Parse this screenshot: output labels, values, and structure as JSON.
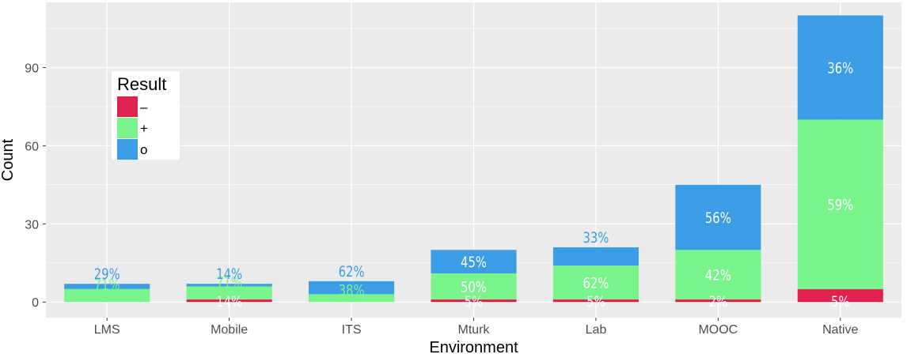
{
  "chart_data": {
    "type": "bar",
    "stacked": true,
    "xlabel": "Environment",
    "ylabel": "Count",
    "categories": [
      "LMS",
      "Mobile",
      "ITS",
      "Mturk",
      "Lab",
      "MOOC",
      "Native"
    ],
    "yticks": [
      0,
      30,
      60,
      90
    ],
    "ylim": [
      -6,
      115
    ],
    "grid": true,
    "legend": {
      "title": "Result",
      "placement": "top-left",
      "entries": [
        {
          "key": "minus",
          "label": "–"
        },
        {
          "key": "plus",
          "label": "+"
        },
        {
          "key": "o",
          "label": "o"
        }
      ]
    },
    "colors": {
      "minus": "#e0224f",
      "plus": "#7af58c",
      "o": "#3b9de6",
      "panel": "#ebebeb",
      "grid": "#ffffff"
    },
    "series": [
      {
        "key": "minus",
        "values": [
          0,
          1,
          0,
          1,
          1,
          1,
          5
        ],
        "labels": [
          "",
          "14%",
          "",
          "5%",
          "5%",
          "2%",
          "5%"
        ]
      },
      {
        "key": "plus",
        "values": [
          5,
          5,
          3,
          10,
          13,
          19,
          65
        ],
        "labels": [
          "71%",
          "71%",
          "38%",
          "50%",
          "62%",
          "42%",
          "59%"
        ]
      },
      {
        "key": "o",
        "values": [
          2,
          1,
          5,
          9,
          7,
          25,
          40
        ],
        "labels": [
          "29%",
          "14%",
          "62%",
          "45%",
          "33%",
          "56%",
          "36%"
        ]
      }
    ]
  }
}
